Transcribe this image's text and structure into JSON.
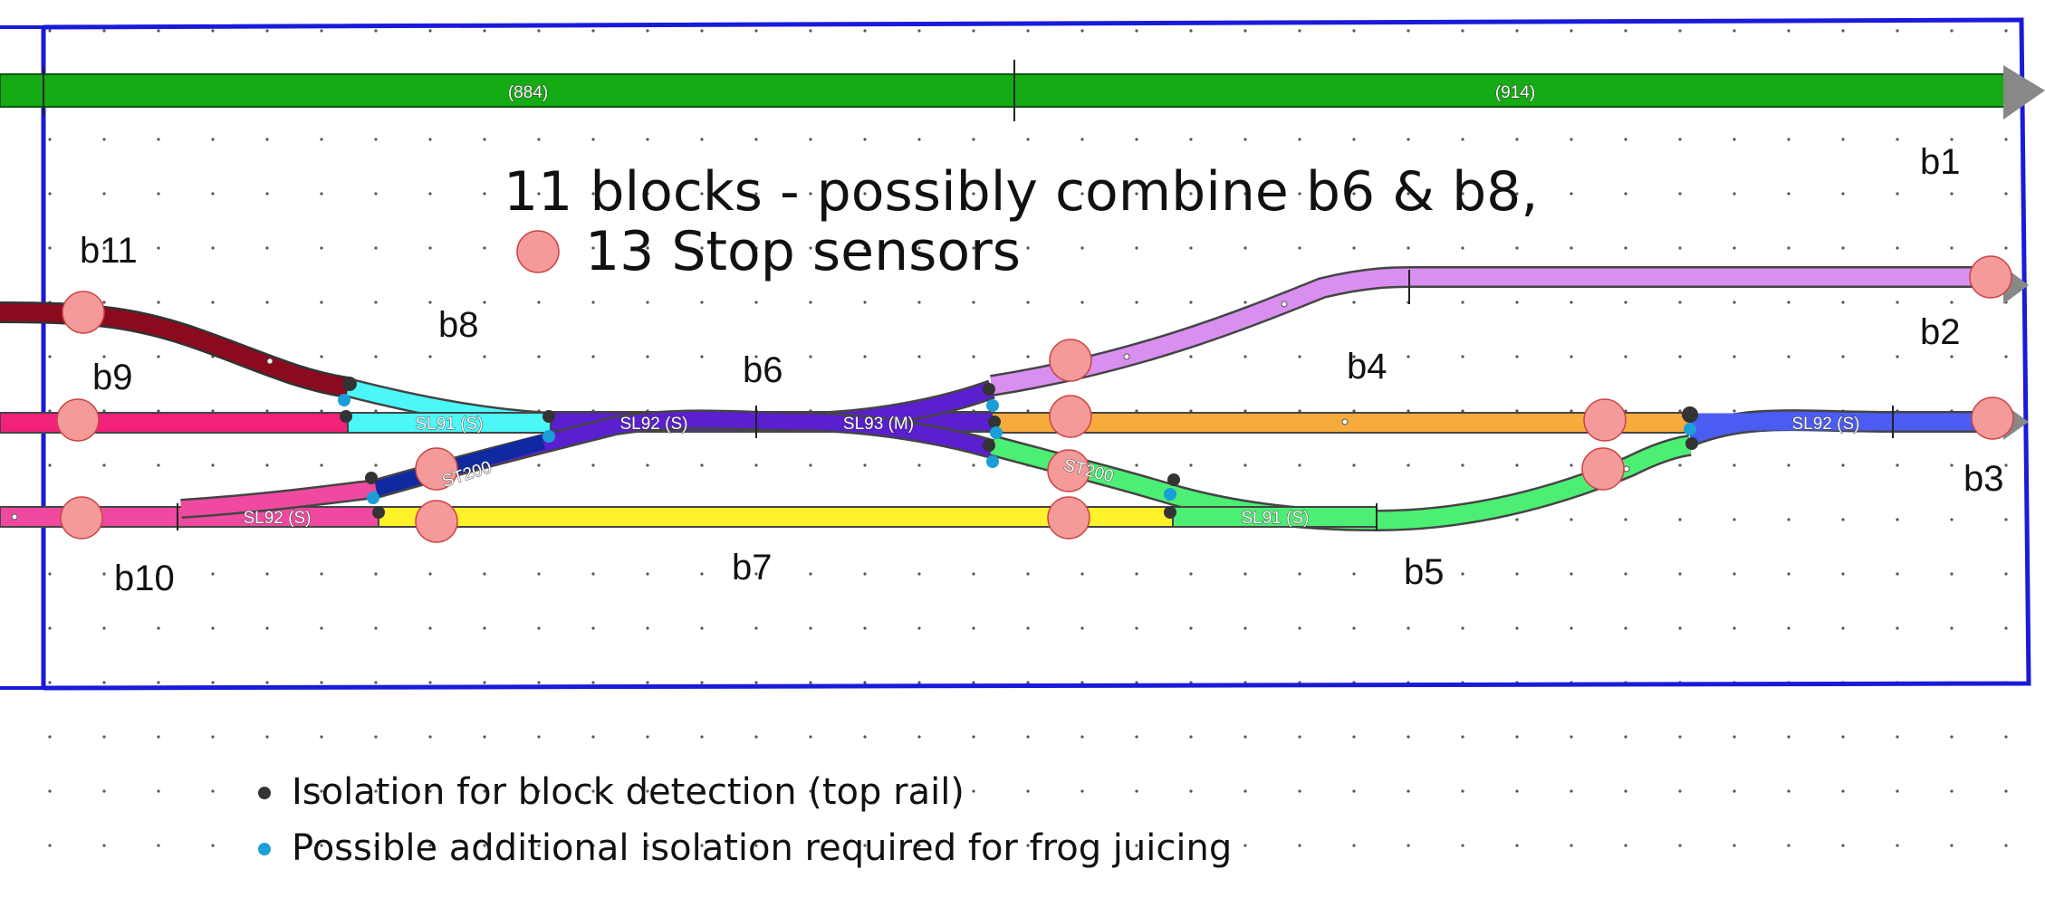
{
  "diagram": {
    "main_line_labels": [
      "(884)",
      "(914)"
    ],
    "note": {
      "line1": "11 blocks - possibly combine b6 & b8,",
      "line2": "13 Stop sensors"
    },
    "blocks": {
      "b1": "b1",
      "b2": "b2",
      "b3": "b3",
      "b4": "b4",
      "b5": "b5",
      "b6": "b6",
      "b7": "b7",
      "b8": "b8",
      "b9": "b9",
      "b10": "b10",
      "b11": "b11"
    },
    "track_labels": {
      "sl91_left": "SL91 (S)",
      "sl92_upper": "SL92 (S)",
      "sl93": "SL93 (M)",
      "st200_left": "ST200",
      "st200_right": "ST200",
      "sl92_lower": "SL92 (S)",
      "sl91_right": "SL91 (S)",
      "sl92_right": "SL92 (S)"
    },
    "legend": [
      {
        "symbol": "black-dot",
        "color": "#333333",
        "text": "Isolation for block detection (top rail)"
      },
      {
        "symbol": "blue-dot",
        "color": "#1a9fd9",
        "text": "Possible additional isolation required for frog juicing"
      }
    ],
    "colors": {
      "main_line": "#14ab14",
      "border": "#1a1adb",
      "sensor": "#f59a9a",
      "b2": "#d98ff0",
      "b3": "#4a5cf2",
      "b4": "#f7ab3d",
      "b5": "#4cef74",
      "b6": "#5a1fce",
      "b7": "#fff22a",
      "b8": "#4cf7f7",
      "b9": "#f2217a",
      "b10": "#ef4a9f",
      "b11": "#8c0a1e"
    }
  }
}
